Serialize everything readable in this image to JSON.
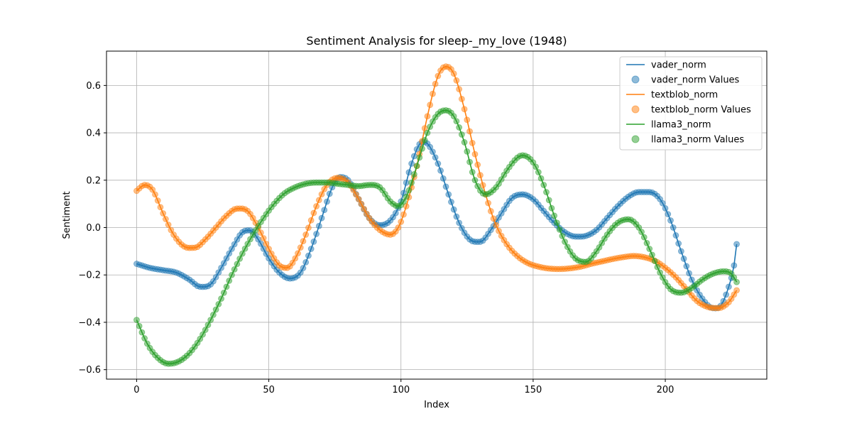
{
  "chart_data": {
    "type": "line",
    "title": "Sentiment Analysis for sleep-_my_love (1948)",
    "xlabel": "Index",
    "ylabel": "Sentiment",
    "xlim": [
      -11.4,
      238.4
    ],
    "ylim": [
      -0.64,
      0.745
    ],
    "xticks": [
      0,
      50,
      100,
      150,
      200
    ],
    "yticks": [
      -0.6,
      -0.4,
      -0.2,
      0.0,
      0.2,
      0.4,
      0.6
    ],
    "xtick_labels": [
      "0",
      "50",
      "100",
      "150",
      "200"
    ],
    "ytick_labels": [
      "−0.6",
      "−0.4",
      "−0.2",
      "0.0",
      "0.2",
      "0.4",
      "0.6"
    ],
    "grid": true,
    "legend_position": "top-right",
    "x_range": [
      0,
      227
    ],
    "series": [
      {
        "name": "vader_norm",
        "legend_line": "vader_norm",
        "legend_points": "vader_norm Values",
        "color": "#1f77b4",
        "keypoints": [
          [
            0,
            -0.153
          ],
          [
            5,
            -0.17
          ],
          [
            10,
            -0.18
          ],
          [
            15,
            -0.19
          ],
          [
            20,
            -0.22
          ],
          [
            24,
            -0.25
          ],
          [
            28,
            -0.24
          ],
          [
            32,
            -0.17
          ],
          [
            36,
            -0.09
          ],
          [
            40,
            -0.02
          ],
          [
            43,
            -0.012
          ],
          [
            46,
            -0.05
          ],
          [
            50,
            -0.13
          ],
          [
            54,
            -0.19
          ],
          [
            58,
            -0.215
          ],
          [
            62,
            -0.19
          ],
          [
            66,
            -0.09
          ],
          [
            70,
            0.04
          ],
          [
            74,
            0.17
          ],
          [
            77,
            0.213
          ],
          [
            80,
            0.2
          ],
          [
            84,
            0.12
          ],
          [
            88,
            0.04
          ],
          [
            92,
            0.01
          ],
          [
            96,
            0.03
          ],
          [
            100,
            0.11
          ],
          [
            104,
            0.27
          ],
          [
            108,
            0.36
          ],
          [
            110,
            0.355
          ],
          [
            114,
            0.27
          ],
          [
            118,
            0.14
          ],
          [
            122,
            0.02
          ],
          [
            126,
            -0.05
          ],
          [
            130,
            -0.06
          ],
          [
            134,
            -0.01
          ],
          [
            138,
            0.06
          ],
          [
            142,
            0.125
          ],
          [
            146,
            0.14
          ],
          [
            150,
            0.12
          ],
          [
            154,
            0.07
          ],
          [
            158,
            0.02
          ],
          [
            162,
            -0.02
          ],
          [
            166,
            -0.038
          ],
          [
            170,
            -0.035
          ],
          [
            174,
            -0.01
          ],
          [
            178,
            0.04
          ],
          [
            182,
            0.09
          ],
          [
            186,
            0.13
          ],
          [
            190,
            0.15
          ],
          [
            194,
            0.15
          ],
          [
            198,
            0.12
          ],
          [
            202,
            0.03
          ],
          [
            206,
            -0.1
          ],
          [
            210,
            -0.22
          ],
          [
            214,
            -0.3
          ],
          [
            218,
            -0.34
          ],
          [
            221,
            -0.33
          ],
          [
            224,
            -0.25
          ],
          [
            226,
            -0.16
          ],
          [
            227,
            -0.07
          ]
        ]
      },
      {
        "name": "textblob_norm",
        "legend_line": "textblob_norm",
        "legend_points": "textblob_norm Values",
        "color": "#ff7f0e",
        "keypoints": [
          [
            0,
            0.155
          ],
          [
            3,
            0.18
          ],
          [
            6,
            0.16
          ],
          [
            10,
            0.06
          ],
          [
            14,
            -0.03
          ],
          [
            18,
            -0.08
          ],
          [
            22,
            -0.085
          ],
          [
            26,
            -0.05
          ],
          [
            30,
            0.0
          ],
          [
            34,
            0.05
          ],
          [
            38,
            0.08
          ],
          [
            42,
            0.07
          ],
          [
            46,
            0.0
          ],
          [
            50,
            -0.09
          ],
          [
            54,
            -0.16
          ],
          [
            57,
            -0.17
          ],
          [
            60,
            -0.13
          ],
          [
            64,
            -0.03
          ],
          [
            68,
            0.09
          ],
          [
            72,
            0.18
          ],
          [
            76,
            0.21
          ],
          [
            80,
            0.19
          ],
          [
            84,
            0.12
          ],
          [
            88,
            0.04
          ],
          [
            92,
            -0.01
          ],
          [
            96,
            -0.03
          ],
          [
            99,
            0.0
          ],
          [
            102,
            0.09
          ],
          [
            106,
            0.26
          ],
          [
            110,
            0.47
          ],
          [
            114,
            0.64
          ],
          [
            117,
            0.68
          ],
          [
            120,
            0.65
          ],
          [
            124,
            0.5
          ],
          [
            128,
            0.31
          ],
          [
            132,
            0.14
          ],
          [
            136,
            0.01
          ],
          [
            140,
            -0.07
          ],
          [
            144,
            -0.12
          ],
          [
            148,
            -0.15
          ],
          [
            152,
            -0.165
          ],
          [
            156,
            -0.173
          ],
          [
            160,
            -0.175
          ],
          [
            164,
            -0.172
          ],
          [
            168,
            -0.165
          ],
          [
            172,
            -0.153
          ],
          [
            176,
            -0.143
          ],
          [
            180,
            -0.133
          ],
          [
            184,
            -0.125
          ],
          [
            188,
            -0.12
          ],
          [
            192,
            -0.125
          ],
          [
            196,
            -0.14
          ],
          [
            200,
            -0.17
          ],
          [
            204,
            -0.21
          ],
          [
            208,
            -0.26
          ],
          [
            212,
            -0.31
          ],
          [
            216,
            -0.335
          ],
          [
            220,
            -0.34
          ],
          [
            224,
            -0.315
          ],
          [
            227,
            -0.265
          ]
        ]
      },
      {
        "name": "llama3_norm",
        "legend_line": "llama3_norm",
        "legend_points": "llama3_norm Values",
        "color": "#2ca02c",
        "keypoints": [
          [
            0,
            -0.39
          ],
          [
            4,
            -0.49
          ],
          [
            8,
            -0.55
          ],
          [
            12,
            -0.575
          ],
          [
            16,
            -0.565
          ],
          [
            20,
            -0.53
          ],
          [
            24,
            -0.47
          ],
          [
            28,
            -0.39
          ],
          [
            32,
            -0.3
          ],
          [
            36,
            -0.2
          ],
          [
            40,
            -0.11
          ],
          [
            44,
            -0.03
          ],
          [
            48,
            0.04
          ],
          [
            52,
            0.1
          ],
          [
            56,
            0.145
          ],
          [
            60,
            0.17
          ],
          [
            64,
            0.185
          ],
          [
            68,
            0.19
          ],
          [
            72,
            0.19
          ],
          [
            76,
            0.185
          ],
          [
            80,
            0.18
          ],
          [
            84,
            0.175
          ],
          [
            88,
            0.18
          ],
          [
            92,
            0.17
          ],
          [
            96,
            0.11
          ],
          [
            99,
            0.09
          ],
          [
            102,
            0.13
          ],
          [
            106,
            0.26
          ],
          [
            110,
            0.4
          ],
          [
            114,
            0.48
          ],
          [
            117,
            0.495
          ],
          [
            120,
            0.47
          ],
          [
            124,
            0.36
          ],
          [
            128,
            0.2
          ],
          [
            132,
            0.14
          ],
          [
            136,
            0.17
          ],
          [
            140,
            0.24
          ],
          [
            144,
            0.295
          ],
          [
            146,
            0.305
          ],
          [
            150,
            0.275
          ],
          [
            154,
            0.18
          ],
          [
            158,
            0.05
          ],
          [
            162,
            -0.06
          ],
          [
            166,
            -0.13
          ],
          [
            170,
            -0.145
          ],
          [
            174,
            -0.1
          ],
          [
            178,
            -0.03
          ],
          [
            182,
            0.02
          ],
          [
            186,
            0.035
          ],
          [
            190,
            0.0
          ],
          [
            194,
            -0.09
          ],
          [
            198,
            -0.19
          ],
          [
            202,
            -0.26
          ],
          [
            206,
            -0.275
          ],
          [
            210,
            -0.255
          ],
          [
            214,
            -0.22
          ],
          [
            218,
            -0.195
          ],
          [
            222,
            -0.185
          ],
          [
            225,
            -0.195
          ],
          [
            227,
            -0.23
          ]
        ]
      }
    ]
  }
}
